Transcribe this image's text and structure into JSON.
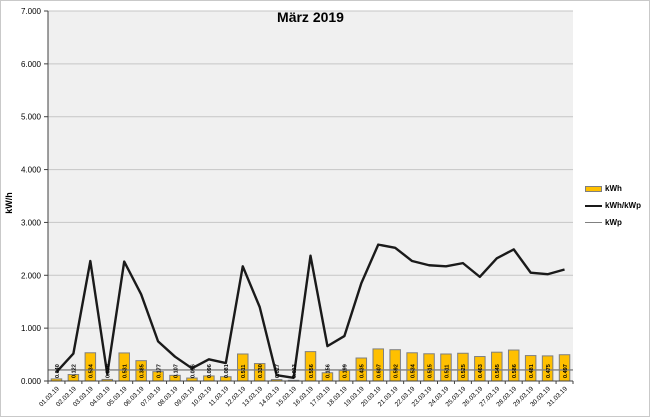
{
  "title": "März 2019",
  "y_axis": {
    "label": "kW/h",
    "ticks": [
      "0.000",
      "1.000",
      "2.000",
      "3.000",
      "4.000",
      "5.000",
      "6.000",
      "7.000"
    ]
  },
  "legend": [
    {
      "label": "kWh",
      "swatch": "bar-swatch"
    },
    {
      "label": "kWh/kWp",
      "swatch": "black-line-swatch"
    },
    {
      "label": "kWp",
      "swatch": "gray-line-swatch"
    }
  ],
  "colors": {
    "bar_fill": "#FFC000",
    "bar_stroke": "#7F7F7F",
    "line_kwh_kwp": "#1A1A1A",
    "line_kwp": "#808080",
    "plot_bg": "#F0F0F0",
    "chart_bg": "#FFFFFF",
    "gridline": "#C6C6C6",
    "axis": "#404040"
  },
  "chart_data": {
    "type": "bar",
    "title": "März 2019",
    "ylabel": "kW/h",
    "ylim": [
      0,
      7
    ],
    "grid": true,
    "legend_position": "right",
    "categories": [
      "01.03.19",
      "02.03.19",
      "03.03.19",
      "04.03.19",
      "05.03.19",
      "06.03.19",
      "07.03.19",
      "08.03.19",
      "09.03.19",
      "10.03.19",
      "11.03.19",
      "12.03.19",
      "13.03.19",
      "14.03.19",
      "15.03.19",
      "16.03.19",
      "17.03.19",
      "18.03.19",
      "19.03.19",
      "20.03.19",
      "21.03.19",
      "22.03.19",
      "23.03.19",
      "24.03.19",
      "25.03.19",
      "26.03.19",
      "27.03.19",
      "28.03.19",
      "29.03.19",
      "30.03.19",
      "31.03.19"
    ],
    "series": [
      {
        "name": "kWh",
        "type": "bar",
        "values": [
          0.04,
          0.122,
          0.534,
          0.03,
          0.531,
          0.385,
          0.177,
          0.107,
          0.056,
          0.096,
          0.081,
          0.511,
          0.33,
          0.027,
          0.013,
          0.556,
          0.156,
          0.199,
          0.435,
          0.607,
          0.592,
          0.534,
          0.515,
          0.511,
          0.525,
          0.463,
          0.545,
          0.586,
          0.481,
          0.475,
          0.497
        ],
        "labels": [
          "0.040",
          "0.122",
          "0.534",
          "0.030",
          "0.531",
          "0.385",
          "0.177",
          "0.107",
          "0.056",
          "0.096",
          "0.081",
          "0.511",
          "0.330",
          "0.027",
          "0.013",
          "0.556",
          "0.156",
          "0.199",
          "0.435",
          "0.607",
          "0.592",
          "0.534",
          "0.515",
          "0.511",
          "0.525",
          "0.463",
          "0.545",
          "0.586",
          "0.481",
          "0.475",
          "0.497"
        ]
      },
      {
        "name": "kWh/kWp",
        "type": "line",
        "values": [
          0.17,
          0.52,
          2.27,
          0.13,
          2.26,
          1.64,
          0.75,
          0.46,
          0.24,
          0.41,
          0.34,
          2.17,
          1.4,
          0.11,
          0.06,
          2.37,
          0.66,
          0.85,
          1.85,
          2.58,
          2.52,
          2.27,
          2.19,
          2.17,
          2.23,
          1.97,
          2.32,
          2.49,
          2.05,
          2.02,
          2.11
        ]
      },
      {
        "name": "kWp",
        "type": "line",
        "constant": 0.21
      }
    ]
  }
}
